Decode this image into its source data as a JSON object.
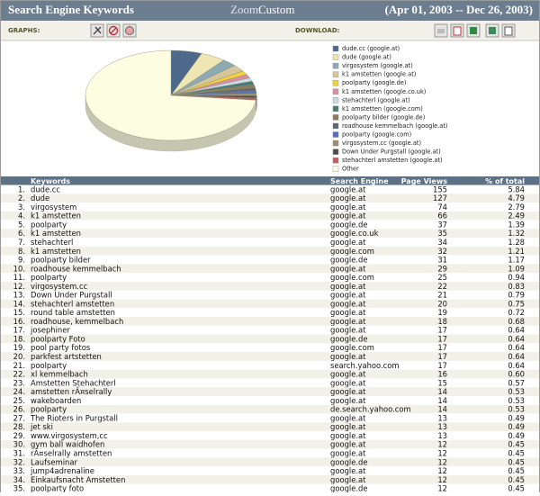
{
  "header": {
    "title": "Search Engine Keywords",
    "zoom_label": "Zoom:",
    "zoom_value": "Custom",
    "date_range": "(Apr 01, 2003 -- Dec 26, 2003)"
  },
  "toolbar": {
    "graphs_label": "GRAPHS:",
    "download_label": "DOWNLOAD:"
  },
  "chart_data": {
    "type": "pie",
    "categories": [
      "dude.cc (google.at)",
      "dude (google.at)",
      "virgosystem (google.at)",
      "k1 amstetten (google.at)",
      "poolparty (google.de)",
      "k1 amstetten (google.co.uk)",
      "stehachterl (google.at)",
      "k1 amstetten (google.com)",
      "poolparty bilder (google.de)",
      "roadhouse kemmelbach (google.at)",
      "poolparty (google.com)",
      "virgosystem.cc (google.at)",
      "Down Under Purgstall (google.at)",
      "stehachterl amstetten (google.at)",
      "Other"
    ],
    "values": [
      5.84,
      4.79,
      2.79,
      2.49,
      1.39,
      1.32,
      1.28,
      1.21,
      1.17,
      1.09,
      0.94,
      0.83,
      0.79,
      0.75,
      73.32
    ],
    "colors": [
      "#4d6a8c",
      "#efe6b4",
      "#8daab2",
      "#d6c69c",
      "#f0d23c",
      "#d890a2",
      "#c9dbe4",
      "#487a76",
      "#8a7a5e",
      "#5e6670",
      "#4f6fc2",
      "#a08f6c",
      "#4e4e4e",
      "#c25e5e",
      "#fdfde2"
    ]
  },
  "table": {
    "columns": [
      "Keywords",
      "Search Engine",
      "Page Views",
      "% of total"
    ],
    "rows": [
      [
        "1.",
        "dude.cc",
        "google.at",
        "155",
        "5.84"
      ],
      [
        "2.",
        "dude",
        "google.at",
        "127",
        "4.79"
      ],
      [
        "3.",
        "virgosystem",
        "google.at",
        "74",
        "2.79"
      ],
      [
        "4.",
        "k1 amstetten",
        "google.at",
        "66",
        "2.49"
      ],
      [
        "5.",
        "poolparty",
        "google.de",
        "37",
        "1.39"
      ],
      [
        "6.",
        "k1 amstetten",
        "google.co.uk",
        "35",
        "1.32"
      ],
      [
        "7.",
        "stehachterl",
        "google.at",
        "34",
        "1.28"
      ],
      [
        "8.",
        "k1 amstetten",
        "google.com",
        "32",
        "1.21"
      ],
      [
        "9.",
        "poolparty bilder",
        "google.de",
        "31",
        "1.17"
      ],
      [
        "10.",
        "roadhouse kemmelbach",
        "google.at",
        "29",
        "1.09"
      ],
      [
        "11.",
        "poolparty",
        "google.com",
        "25",
        "0.94"
      ],
      [
        "12.",
        "virgosystem.cc",
        "google.at",
        "22",
        "0.83"
      ],
      [
        "13.",
        "Down Under Purgstall",
        "google.at",
        "21",
        "0.79"
      ],
      [
        "14.",
        "stehachterl amstetten",
        "google.at",
        "20",
        "0.75"
      ],
      [
        "15.",
        "round table amstetten",
        "google.at",
        "19",
        "0.72"
      ],
      [
        "16.",
        "roadhouse, kemmelbach",
        "google.at",
        "18",
        "0.68"
      ],
      [
        "17.",
        "josephiner",
        "google.at",
        "17",
        "0.64"
      ],
      [
        "18.",
        "poolparty Foto",
        "google.de",
        "17",
        "0.64"
      ],
      [
        "19.",
        "pool party fotos",
        "google.com",
        "17",
        "0.64"
      ],
      [
        "20.",
        "parkfest artstetten",
        "google.at",
        "17",
        "0.64"
      ],
      [
        "21.",
        "poolparty",
        "search.yahoo.com",
        "17",
        "0.64"
      ],
      [
        "22.",
        "xl kemmelbach",
        "google.at",
        "16",
        "0.60"
      ],
      [
        "23.",
        "Amstetten Stehachterl",
        "google.at",
        "15",
        "0.57"
      ],
      [
        "24.",
        "amstetten rÃ¤selrally",
        "google.at",
        "14",
        "0.53"
      ],
      [
        "25.",
        "wakeboarden",
        "google.at",
        "14",
        "0.53"
      ],
      [
        "26.",
        "poolparty",
        "de.search.yahoo.com",
        "14",
        "0.53"
      ],
      [
        "27.",
        "The Rioters in Purgstall",
        "google.at",
        "13",
        "0.49"
      ],
      [
        "28.",
        "jet ski",
        "google.at",
        "13",
        "0.49"
      ],
      [
        "29.",
        "www.virgosystem,cc",
        "google.at",
        "13",
        "0.49"
      ],
      [
        "30.",
        "gym ball waidhofen",
        "google.at",
        "12",
        "0.45"
      ],
      [
        "31.",
        "rÃ¤selrally amstetten",
        "google.at",
        "12",
        "0.45"
      ],
      [
        "32.",
        "Laufseminar",
        "google.de",
        "12",
        "0.45"
      ],
      [
        "33.",
        "jump4adrenaline",
        "google.at",
        "12",
        "0.45"
      ],
      [
        "34.",
        "Einkaufsnacht Amstetten",
        "google.at",
        "12",
        "0.45"
      ],
      [
        "35.",
        "poolparty foto",
        "google.de",
        "12",
        "0.45"
      ]
    ]
  }
}
